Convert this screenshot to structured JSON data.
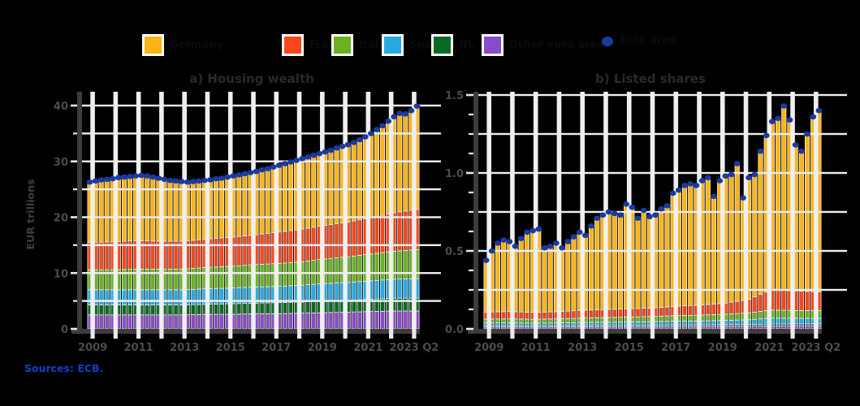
{
  "page": {
    "background": "#000000"
  },
  "legend": {
    "items": [
      {
        "label": "Germany",
        "color": "#FCB315"
      },
      {
        "label": "France",
        "color": "#F9461C"
      },
      {
        "label": "Italy",
        "color": "#69B322"
      },
      {
        "label": "Spain",
        "color": "#27AAE1"
      },
      {
        "label": "NL",
        "color": "#086B23"
      },
      {
        "label": "Other euro area",
        "color": "#8A4BC8"
      }
    ],
    "marker": {
      "label": "Euro area",
      "color": "#1B3A9E"
    }
  },
  "source": {
    "label": "Sources: ECB."
  },
  "chart_data": [
    {
      "type": "bar",
      "stacked": true,
      "title": "a) Housing wealth",
      "ylabel": "EUR trillions",
      "ylim": [
        0,
        40
      ],
      "yticks": [
        0,
        10,
        20,
        30,
        40
      ],
      "yticks_minor": [
        5,
        15,
        25,
        35
      ],
      "ygrid": [
        5,
        10,
        15,
        20,
        25,
        30,
        35,
        40
      ],
      "grid": true,
      "legend_position": "top",
      "x_frequency": "quarterly",
      "x_range": [
        "2009 Q1",
        "2023 Q2"
      ],
      "xticklabels": [
        "2009",
        "2011",
        "2013",
        "2015",
        "2017",
        "2019",
        "2021",
        "2023 Q2"
      ],
      "xtick_years": [
        2009,
        2011,
        2013,
        2015,
        2017,
        2019,
        2021,
        2023
      ],
      "years": [
        2009,
        2010,
        2011,
        2012,
        2013,
        2014,
        2015,
        2016,
        2017,
        2018,
        2019,
        2020,
        2021,
        2022,
        2023
      ],
      "series": [
        {
          "label": "Germany",
          "color": "#FCB315",
          "values_yearly": [
            11.1,
            11.5,
            11.9,
            11.3,
            10.9,
            11.0,
            11.5,
            11.9,
            12.4,
            13.0,
            13.6,
            14.6,
            16.0,
            17.4,
            18.1
          ]
        },
        {
          "label": "France",
          "color": "#F9461C",
          "values_yearly": [
            4.9,
            5.0,
            5.1,
            5.0,
            5.0,
            5.1,
            5.2,
            5.3,
            5.6,
            5.8,
            6.0,
            6.2,
            6.5,
            6.9,
            7.2
          ]
        },
        {
          "label": "Italy",
          "color": "#69B322",
          "values_yearly": [
            3.6,
            3.6,
            3.7,
            3.7,
            3.7,
            3.8,
            3.9,
            4.0,
            4.1,
            4.2,
            4.4,
            4.6,
            4.8,
            5.0,
            5.2
          ]
        },
        {
          "label": "Spain",
          "color": "#27AAE1",
          "values_yearly": [
            2.7,
            2.7,
            2.7,
            2.7,
            2.7,
            2.8,
            2.8,
            2.9,
            2.9,
            3.0,
            3.1,
            3.2,
            3.3,
            3.4,
            3.5
          ]
        },
        {
          "label": "NL",
          "color": "#086B23",
          "values_yearly": [
            1.8,
            1.8,
            1.8,
            1.8,
            1.8,
            1.8,
            1.9,
            1.9,
            2.0,
            2.0,
            2.1,
            2.1,
            2.2,
            2.3,
            2.3
          ]
        },
        {
          "label": "Other euro area",
          "color": "#8A4BC8",
          "values_yearly": [
            2.5,
            2.5,
            2.5,
            2.5,
            2.5,
            2.6,
            2.6,
            2.7,
            2.7,
            2.8,
            2.9,
            3.0,
            3.1,
            3.2,
            3.2
          ]
        }
      ],
      "total_marker": {
        "label": "Euro area",
        "color": "#1B3A9E"
      },
      "totals_quarterly": [
        26.3,
        26.5,
        26.7,
        26.8,
        26.9,
        27.1,
        27.2,
        27.3,
        27.4,
        27.5,
        27.4,
        27.2,
        27.0,
        26.8,
        26.6,
        26.5,
        26.4,
        26.3,
        26.4,
        26.5,
        26.6,
        26.7,
        26.9,
        27.0,
        27.2,
        27.4,
        27.6,
        27.8,
        28.0,
        28.2,
        28.5,
        28.7,
        29.0,
        29.3,
        29.6,
        29.9,
        30.2,
        30.5,
        30.8,
        31.1,
        31.4,
        31.7,
        32.0,
        32.4,
        32.7,
        33.0,
        33.4,
        33.9,
        34.4,
        35.0,
        35.7,
        36.4,
        37.2,
        38.0,
        38.6,
        38.5,
        39.1,
        39.9
      ]
    },
    {
      "type": "bar",
      "stacked": true,
      "title": "b) Listed shares",
      "ylabel": "",
      "ylim": [
        0,
        1.5
      ],
      "yticks": [
        0.0,
        0.5,
        1.0,
        1.5
      ],
      "ytick_labels": [
        "0.0",
        "0.5",
        "1.0",
        "1.5"
      ],
      "yticks_minor": [
        0.125,
        0.25,
        0.375,
        0.625,
        0.75,
        0.875,
        1.125,
        1.25,
        1.375
      ],
      "ygrid": [
        0.25,
        0.5,
        0.75,
        1.0,
        1.25,
        1.5
      ],
      "grid": true,
      "x_frequency": "quarterly",
      "x_range": [
        "2009 Q1",
        "2023 Q2"
      ],
      "xticklabels": [
        "2009",
        "2011",
        "2013",
        "2015",
        "2017",
        "2019",
        "2021",
        "2023 Q2"
      ],
      "xtick_years": [
        2009,
        2011,
        2013,
        2015,
        2017,
        2019,
        2021,
        2023
      ],
      "years": [
        2009,
        2010,
        2011,
        2012,
        2013,
        2014,
        2015,
        2016,
        2017,
        2018,
        2019,
        2020,
        2021,
        2022,
        2023
      ],
      "series": [
        {
          "label": "Germany",
          "color": "#FCB315",
          "values_yearly": [
            0.41,
            0.45,
            0.47,
            0.45,
            0.52,
            0.6,
            0.63,
            0.62,
            0.76,
            0.77,
            0.85,
            0.85,
            1.1,
            1.0,
            1.15
          ]
        },
        {
          "label": "France",
          "color": "#F9461C",
          "values_yearly": [
            0.045,
            0.047,
            0.044,
            0.046,
            0.05,
            0.052,
            0.053,
            0.055,
            0.06,
            0.065,
            0.07,
            0.085,
            0.13,
            0.125,
            0.12
          ]
        },
        {
          "label": "Italy",
          "color": "#69B322",
          "values_yearly": [
            0.025,
            0.026,
            0.025,
            0.026,
            0.028,
            0.03,
            0.032,
            0.033,
            0.036,
            0.038,
            0.04,
            0.044,
            0.052,
            0.05,
            0.05
          ]
        },
        {
          "label": "Spain",
          "color": "#27AAE1",
          "values_yearly": [
            0.018,
            0.018,
            0.017,
            0.018,
            0.019,
            0.02,
            0.021,
            0.022,
            0.024,
            0.025,
            0.027,
            0.03,
            0.038,
            0.036,
            0.035
          ]
        },
        {
          "label": "NL",
          "color": "#086B23",
          "values_yearly": [
            0.008,
            0.008,
            0.008,
            0.008,
            0.009,
            0.009,
            0.009,
            0.01,
            0.01,
            0.01,
            0.011,
            0.011,
            0.012,
            0.012,
            0.012
          ]
        },
        {
          "label": "Other euro area",
          "color": "#8A4BC8",
          "values_yearly": [
            0.012,
            0.012,
            0.012,
            0.012,
            0.013,
            0.013,
            0.014,
            0.014,
            0.015,
            0.015,
            0.016,
            0.017,
            0.019,
            0.02,
            0.02
          ]
        }
      ],
      "total_marker": {
        "label": "Euro area",
        "color": "#1B3A9E"
      },
      "totals_quarterly": [
        0.44,
        0.5,
        0.55,
        0.57,
        0.56,
        0.53,
        0.58,
        0.62,
        0.63,
        0.64,
        0.52,
        0.53,
        0.55,
        0.52,
        0.56,
        0.59,
        0.62,
        0.6,
        0.66,
        0.71,
        0.73,
        0.75,
        0.74,
        0.73,
        0.8,
        0.78,
        0.71,
        0.76,
        0.72,
        0.73,
        0.77,
        0.79,
        0.87,
        0.89,
        0.92,
        0.93,
        0.92,
        0.95,
        0.97,
        0.85,
        0.95,
        0.98,
        0.99,
        1.06,
        0.84,
        0.97,
        0.99,
        1.14,
        1.24,
        1.33,
        1.35,
        1.43,
        1.34,
        1.18,
        1.14,
        1.25,
        1.36,
        1.4
      ]
    }
  ],
  "style": {
    "plot_bg": "#000000",
    "grid_color": "#efefef",
    "spine_color": "#3d3d3d",
    "tick_color": "#e9e9e9",
    "axis_text_color": "#4c4c4c",
    "title_color": "#2a2a2a",
    "bar_outline": "#ffffff"
  }
}
